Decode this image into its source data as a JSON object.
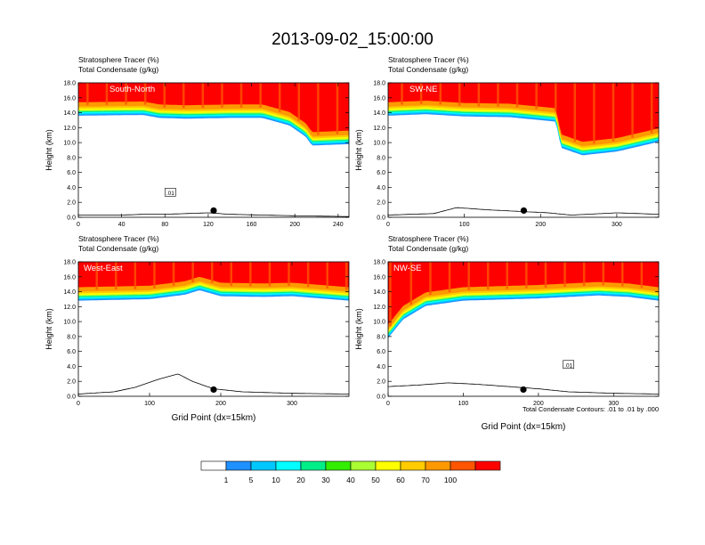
{
  "page": {
    "title": "2013-09-02_15:00:00",
    "contour_note": "Total Condensate Contours: .01 to .01 by .000"
  },
  "colorbar": {
    "colors": [
      "#ffffff",
      "#1e90ff",
      "#00c8ff",
      "#00ffff",
      "#00ee88",
      "#33ee00",
      "#aaff33",
      "#ffff00",
      "#ffcc00",
      "#ff9900",
      "#ff5500",
      "#ff0000"
    ],
    "labels": [
      "1",
      "5",
      "10",
      "20",
      "30",
      "40",
      "50",
      "60",
      "70",
      "100"
    ]
  },
  "chart_data": [
    {
      "type": "heatmap",
      "title_line1": "Stratosphere Tracer   (%)",
      "title_line2": "Total Condensate   (g/kg)",
      "section_label": "South-North",
      "ylabel": "Height (km)",
      "xlabel": "",
      "xlim": [
        0,
        250
      ],
      "ylim": [
        0,
        18
      ],
      "xticks": [
        "0",
        "40",
        "80",
        "120",
        "160",
        "200",
        "240"
      ],
      "xtick_values": [
        0,
        40,
        80,
        120,
        160,
        200,
        240
      ],
      "yticks": [
        "0.0",
        "2.0",
        "4.0",
        "6.0",
        "8.0",
        "10.0",
        "12.0",
        "14.0",
        "16.0",
        "18.0"
      ],
      "tropopause_km": [
        [
          0,
          14.8
        ],
        [
          60,
          14.9
        ],
        [
          75,
          14.5
        ],
        [
          100,
          14.4
        ],
        [
          140,
          14.5
        ],
        [
          170,
          14.5
        ],
        [
          195,
          13.5
        ],
        [
          210,
          12.0
        ],
        [
          216,
          10.8
        ],
        [
          250,
          11.0
        ]
      ],
      "terrain_km": [
        [
          0,
          0.3
        ],
        [
          20,
          0.3
        ],
        [
          40,
          0.3
        ],
        [
          60,
          0.4
        ],
        [
          80,
          0.4
        ],
        [
          100,
          0.5
        ],
        [
          120,
          0.6
        ],
        [
          140,
          0.4
        ],
        [
          170,
          0.3
        ],
        [
          200,
          0.2
        ],
        [
          250,
          0.1
        ]
      ],
      "marker_x": 125,
      "contour_label": ".01"
    },
    {
      "type": "heatmap",
      "title_line1": "Stratosphere Tracer   (%)",
      "title_line2": "Total Condensate   (g/kg)",
      "section_label": "SW-NE",
      "ylabel": "Height (km)",
      "xlabel": "",
      "xlim": [
        0,
        355
      ],
      "ylim": [
        0,
        18
      ],
      "xticks": [
        "0",
        "100",
        "200",
        "300"
      ],
      "xtick_values": [
        0,
        100,
        200,
        300
      ],
      "yticks": [
        "0.0",
        "2.0",
        "4.0",
        "6.0",
        "8.0",
        "10.0",
        "12.0",
        "14.0",
        "16.0",
        "18.0"
      ],
      "tropopause_km": [
        [
          0,
          14.8
        ],
        [
          50,
          15.0
        ],
        [
          100,
          14.7
        ],
        [
          160,
          14.6
        ],
        [
          220,
          14.0
        ],
        [
          227,
          10.5
        ],
        [
          255,
          9.5
        ],
        [
          300,
          10.0
        ],
        [
          355,
          11.3
        ]
      ],
      "terrain_km": [
        [
          0,
          0.3
        ],
        [
          60,
          0.5
        ],
        [
          90,
          1.3
        ],
        [
          130,
          1.0
        ],
        [
          170,
          0.8
        ],
        [
          210,
          0.6
        ],
        [
          240,
          0.3
        ],
        [
          300,
          0.6
        ],
        [
          355,
          0.4
        ]
      ],
      "marker_x": 178,
      "contour_label": ""
    },
    {
      "type": "heatmap",
      "title_line1": "Stratosphere Tracer   (%)",
      "title_line2": "Total Condensate   (g/kg)",
      "section_label": "West-East",
      "ylabel": "Height (km)",
      "xlabel": "Grid Point (dx=15km)",
      "xlim": [
        0,
        380
      ],
      "ylim": [
        0,
        18
      ],
      "xticks": [
        "0",
        "100",
        "200",
        "300"
      ],
      "xtick_values": [
        0,
        100,
        200,
        300
      ],
      "yticks": [
        "0.0",
        "2.0",
        "4.0",
        "6.0",
        "8.0",
        "10.0",
        "12.0",
        "14.0",
        "16.0",
        "18.0"
      ],
      "tropopause_km": [
        [
          0,
          14.0
        ],
        [
          100,
          14.2
        ],
        [
          150,
          14.8
        ],
        [
          170,
          15.4
        ],
        [
          200,
          14.6
        ],
        [
          260,
          14.5
        ],
        [
          300,
          14.6
        ],
        [
          380,
          14.0
        ]
      ],
      "terrain_km": [
        [
          0,
          0.3
        ],
        [
          50,
          0.6
        ],
        [
          80,
          1.2
        ],
        [
          110,
          2.2
        ],
        [
          140,
          3.0
        ],
        [
          160,
          2.0
        ],
        [
          190,
          1.0
        ],
        [
          230,
          0.6
        ],
        [
          300,
          0.4
        ],
        [
          380,
          0.3
        ]
      ],
      "marker_x": 190,
      "contour_label": ""
    },
    {
      "type": "heatmap",
      "title_line1": "Stratosphere Tracer   (%)",
      "title_line2": "Total Condensate   (g/kg)",
      "section_label": "NW-SE",
      "ylabel": "Height (km)",
      "xlabel": "Grid Point (dx=15km)",
      "xlim": [
        0,
        360
      ],
      "ylim": [
        0,
        18
      ],
      "xticks": [
        "0",
        "100",
        "200",
        "300"
      ],
      "xtick_values": [
        0,
        100,
        200,
        300
      ],
      "yticks": [
        "0.0",
        "2.0",
        "4.0",
        "6.0",
        "8.0",
        "10.0",
        "12.0",
        "14.0",
        "16.0",
        "18.0"
      ],
      "tropopause_km": [
        [
          0,
          9.0
        ],
        [
          20,
          11.5
        ],
        [
          50,
          13.3
        ],
        [
          100,
          14.0
        ],
        [
          200,
          14.3
        ],
        [
          280,
          14.7
        ],
        [
          320,
          14.5
        ],
        [
          360,
          14.0
        ]
      ],
      "terrain_km": [
        [
          0,
          1.3
        ],
        [
          40,
          1.5
        ],
        [
          80,
          1.8
        ],
        [
          120,
          1.6
        ],
        [
          160,
          1.3
        ],
        [
          200,
          1.0
        ],
        [
          240,
          0.6
        ],
        [
          300,
          0.4
        ],
        [
          360,
          0.3
        ]
      ],
      "marker_x": 180,
      "contour_label": ".01"
    }
  ]
}
